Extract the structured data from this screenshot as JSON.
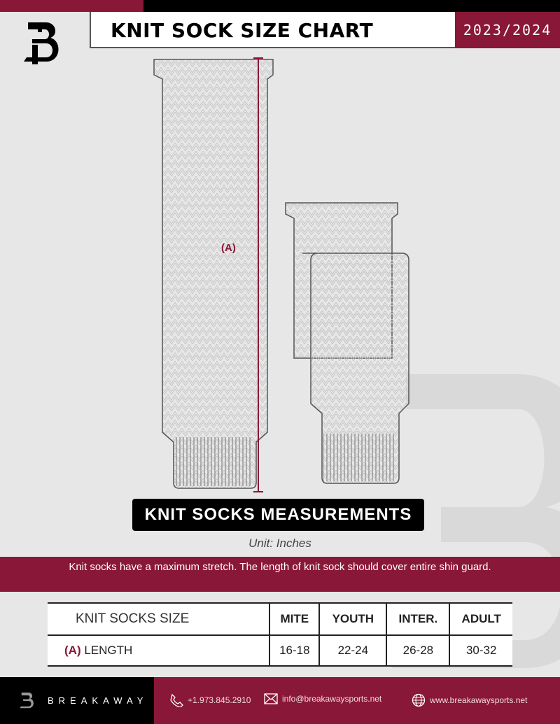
{
  "header": {
    "title": "KNIT SOCK SIZE CHART",
    "season": "2023/2024",
    "logo_text": "B"
  },
  "diagram": {
    "label": "(A)",
    "accent": "#891737"
  },
  "section": {
    "title": "KNIT SOCKS MEASUREMENTS",
    "unit": "Unit: Inches",
    "note": "Knit socks have a maximum stretch. The length of knit sock should cover entire shin guard."
  },
  "table": {
    "headers": [
      "KNIT SOCKS SIZE",
      "MITE",
      "YOUTH",
      "INTER.",
      "ADULT"
    ],
    "rows": [
      {
        "marker": "(A)",
        "label": "LENGTH",
        "values": [
          "16-18",
          "22-24",
          "26-28",
          "30-32"
        ]
      }
    ]
  },
  "footer": {
    "brand": "BREAKAWAY",
    "phone": "+1.973.845.2910",
    "email": "info@breakawaysports.net",
    "website": "www.breakawaysports.net"
  },
  "colors": {
    "brand_red": "#891737",
    "black": "#000000",
    "background": "#e6e7e6"
  }
}
